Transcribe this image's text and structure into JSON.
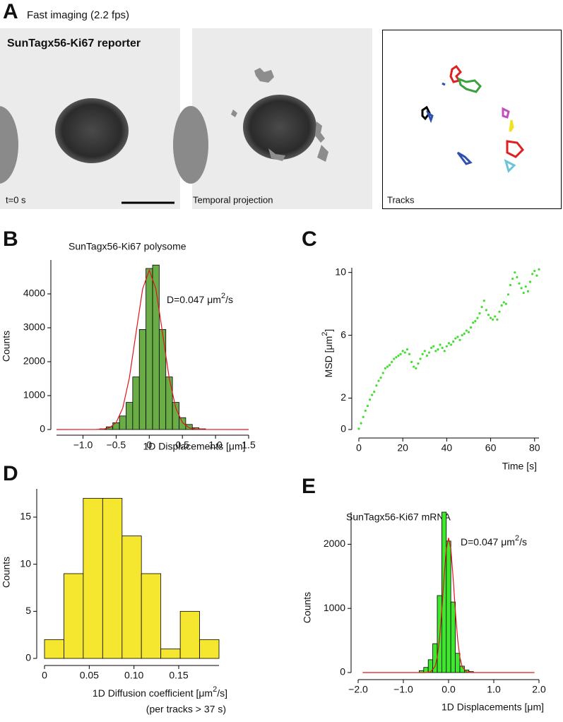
{
  "figure": {
    "panel_a": {
      "label": "A",
      "title": "Fast imaging (2.2 fps)",
      "reporter": "SunTagx56-Ki67 reporter",
      "time": "t=0 s",
      "projection": "Temporal projection",
      "tracks": "Tracks"
    }
  },
  "chart_data": [
    {
      "type": "histogram",
      "panel_label": "B",
      "title": "SunTagx56-Ki67 polysome",
      "annotation": [
        "D=0.047 μm",
        "2",
        "/s"
      ],
      "xlabel": "1D Displacements [μm]",
      "ylabel": "Counts",
      "bins": [
        -0.75,
        -0.65,
        -0.55,
        -0.45,
        -0.35,
        -0.25,
        -0.15,
        -0.05,
        0.05,
        0.15,
        0.25,
        0.35,
        0.45,
        0.55,
        0.65,
        0.75,
        0.85
      ],
      "counts": [
        20,
        80,
        200,
        400,
        800,
        1550,
        2950,
        4750,
        4850,
        2950,
        1550,
        800,
        350,
        150,
        50,
        20
      ],
      "color": "#6aac46",
      "fit": {
        "color": "#e3131b",
        "x": [
          -1.4,
          -0.8,
          -0.7,
          -0.6,
          -0.5,
          -0.4,
          -0.3,
          -0.2,
          -0.1,
          0,
          0.1,
          0.2,
          0.3,
          0.4,
          0.5,
          0.6,
          0.7,
          0.8,
          1.5
        ],
        "values": [
          0,
          2,
          10,
          52,
          206,
          636,
          1526,
          2851,
          4148,
          4700,
          4148,
          2851,
          1526,
          636,
          206,
          52,
          10,
          2,
          0
        ]
      },
      "xlim": [
        -1.4,
        1.5
      ],
      "ylim": [
        0,
        5000
      ],
      "xticks": [
        {
          "value": -1,
          "label": "−1.0"
        },
        {
          "value": -0.5,
          "label": "−0.5"
        },
        0,
        0.5,
        {
          "value": 1,
          "label": "1.0"
        },
        1.5
      ],
      "yticks": [
        0,
        1000,
        2000,
        3000,
        4000
      ]
    },
    {
      "type": "scatter",
      "panel_label": "C",
      "xlabel": "Time [s]",
      "ylabel": [
        "MSD [μm",
        "2",
        "]"
      ],
      "color": "#44dd33",
      "x": [
        0,
        1,
        2,
        3,
        4,
        5,
        6,
        7,
        8,
        9,
        10,
        11,
        12,
        13,
        14,
        15,
        16,
        17,
        18,
        19,
        20,
        21,
        22,
        23,
        24,
        25,
        26,
        27,
        28,
        29,
        30,
        31,
        32,
        33,
        34,
        35,
        36,
        37,
        38,
        39,
        40,
        41,
        42,
        43,
        44,
        45,
        46,
        47,
        48,
        49,
        50,
        51,
        52,
        53,
        54,
        55,
        56,
        57,
        58,
        59,
        60,
        61,
        62,
        63,
        64,
        65,
        66,
        67,
        68,
        69,
        70,
        71,
        72,
        73,
        74,
        75,
        76,
        77,
        78,
        79,
        80,
        81,
        82
      ],
      "values": [
        0.05,
        0.4,
        0.8,
        1.2,
        1.5,
        1.9,
        2.2,
        2.4,
        2.8,
        3.1,
        3.3,
        3.6,
        3.9,
        4.0,
        4.1,
        4.3,
        4.5,
        4.6,
        4.7,
        4.8,
        5.0,
        4.9,
        5.1,
        4.8,
        4.3,
        4.0,
        3.9,
        4.2,
        4.5,
        4.8,
        5.0,
        4.7,
        4.9,
        5.2,
        5.3,
        5.0,
        5.1,
        5.4,
        5.2,
        5.0,
        5.3,
        5.5,
        5.4,
        5.6,
        5.8,
        5.9,
        5.7,
        6.0,
        6.1,
        6.3,
        6.2,
        6.5,
        6.8,
        6.9,
        7.1,
        7.4,
        7.8,
        8.2,
        7.6,
        7.3,
        7.1,
        7.0,
        7.2,
        7.0,
        7.5,
        7.9,
        8.1,
        8.0,
        8.6,
        9.2,
        9.6,
        10.0,
        9.7,
        9.3,
        9.0,
        8.7,
        9.1,
        8.8,
        9.4,
        9.9,
        10.1,
        9.8,
        10.2
      ],
      "xlim": [
        0,
        82
      ],
      "ylim": [
        0,
        10.3
      ],
      "xticks": [
        0,
        20,
        40,
        60,
        80
      ],
      "yticks": [
        0,
        2,
        6,
        10
      ]
    },
    {
      "type": "histogram",
      "panel_label": "D",
      "xlabel": [
        "1D Diffusion coefficient [μm",
        "2",
        "/s]"
      ],
      "xlabel2": "(per tracks > 37 s)",
      "ylabel": "Counts",
      "bins": [
        0,
        0.0217,
        0.0433,
        0.065,
        0.0867,
        0.1083,
        0.13,
        0.1517,
        0.1733,
        0.195
      ],
      "counts": [
        2,
        9,
        17,
        17,
        13,
        9,
        1,
        5,
        2
      ],
      "color": "#f5e630",
      "xlim": [
        0,
        0.195
      ],
      "ylim": [
        0,
        18
      ],
      "xticks": [
        0,
        0.05,
        {
          "value": 0.1,
          "label": "0.10"
        },
        0.15
      ],
      "yticks": [
        0,
        5,
        10,
        15
      ]
    },
    {
      "type": "histogram",
      "panel_label": "E",
      "title": "SunTagx56-Ki67 mRNA",
      "annotation": [
        "D=0.047 μm",
        "2",
        "/s"
      ],
      "xlabel": "1D Displacements [μm]",
      "ylabel": "Counts",
      "bins": [
        -0.65,
        -0.55,
        -0.45,
        -0.35,
        -0.25,
        -0.15,
        -0.05,
        0.05,
        0.15,
        0.25,
        0.35,
        0.45,
        0.55
      ],
      "counts": [
        30,
        80,
        200,
        450,
        1200,
        2500,
        2050,
        1100,
        300,
        100,
        40,
        15
      ],
      "color": "#3ee82c",
      "fit": {
        "color": "#e3131b",
        "x": [
          -1.9,
          -0.5,
          -0.4,
          -0.3,
          -0.25,
          -0.2,
          -0.15,
          -0.1,
          -0.05,
          0,
          0.05,
          0.1,
          0.15,
          0.2,
          0.25,
          0.3,
          0.4,
          0.5,
          1.9
        ],
        "values": [
          0,
          0,
          8,
          92,
          240,
          524,
          962,
          1485,
          1926,
          2100,
          1926,
          1485,
          962,
          524,
          240,
          92,
          8,
          0,
          0
        ]
      },
      "xlim": [
        -2,
        2
      ],
      "ylim": [
        0,
        2500
      ],
      "xticks": [
        {
          "value": -2,
          "label": "−2.0"
        },
        {
          "value": -1,
          "label": "−1.0"
        },
        {
          "value": 0,
          "label": "0.0"
        },
        {
          "value": 1,
          "label": "1.0"
        },
        {
          "value": 2,
          "label": "2.0"
        }
      ],
      "yticks": [
        0,
        1000,
        2000
      ]
    }
  ]
}
